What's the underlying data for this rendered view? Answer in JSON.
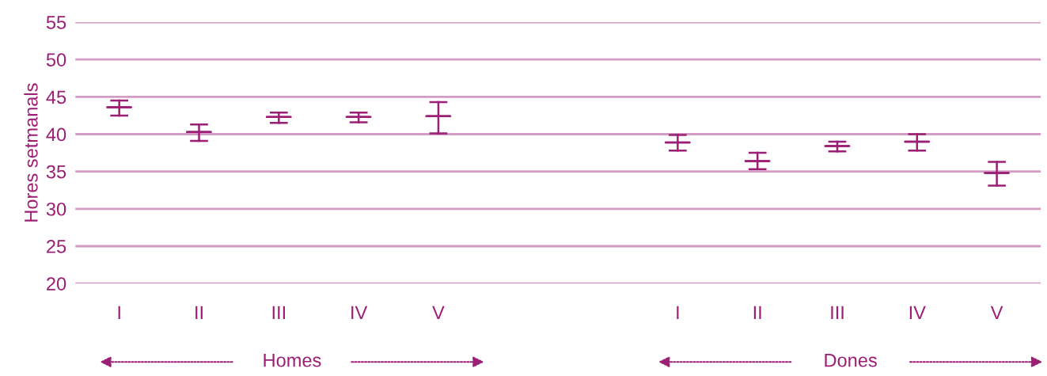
{
  "chart_data": {
    "type": "box",
    "ylabel": "Hores setmanals",
    "categories": [
      "I",
      "II",
      "III",
      "IV",
      "V",
      null,
      null,
      "I",
      "II",
      "III",
      "IV",
      "V"
    ],
    "series": [
      {
        "color": "#9b1f74",
        "boxes": [
          {
            "low": 42.5,
            "q1": 43.6,
            "median": 43.6,
            "q3": 43.6,
            "high": 44.5
          },
          {
            "low": 39.1,
            "q1": 40.3,
            "median": 40.3,
            "q3": 40.3,
            "high": 41.3
          },
          {
            "low": 41.5,
            "q1": 42.3,
            "median": 42.3,
            "q3": 42.3,
            "high": 42.9
          },
          {
            "low": 41.6,
            "q1": 42.3,
            "median": 42.3,
            "q3": 42.3,
            "high": 42.9
          },
          {
            "low": 40.1,
            "q1": 42.4,
            "median": 42.4,
            "q3": 42.4,
            "high": 44.3
          },
          null,
          null,
          {
            "low": 37.8,
            "q1": 38.9,
            "median": 38.9,
            "q3": 38.9,
            "high": 39.9
          },
          {
            "low": 35.3,
            "q1": 36.4,
            "median": 36.4,
            "q3": 36.4,
            "high": 37.5
          },
          {
            "low": 37.7,
            "q1": 38.4,
            "median": 38.4,
            "q3": 38.4,
            "high": 39.0
          },
          {
            "low": 37.8,
            "q1": 39.0,
            "median": 39.0,
            "q3": 39.0,
            "high": 40.0
          },
          {
            "low": 33.1,
            "q1": 34.8,
            "median": 34.8,
            "q3": 34.8,
            "high": 36.3
          }
        ]
      }
    ],
    "ylim": [
      20,
      55
    ],
    "yticks": [
      20,
      25,
      30,
      35,
      40,
      45,
      50,
      55
    ],
    "grid": "y",
    "annotations": [
      "Homes",
      "Dones"
    ]
  }
}
